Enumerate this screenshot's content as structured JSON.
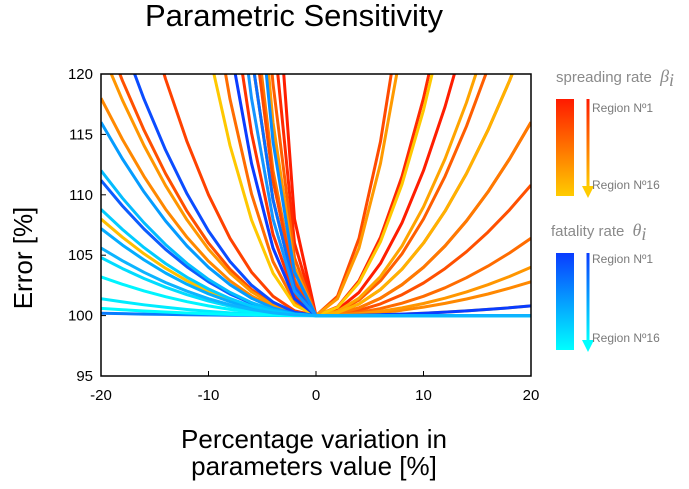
{
  "chart_data": {
    "type": "line",
    "title": "Parametric Sensitivity",
    "xlabel_line1": "Percentage variation in",
    "xlabel_line2": "parameters value [%]",
    "ylabel": "Error [%]",
    "xlim": [
      -20,
      20
    ],
    "ylim": [
      95,
      120
    ],
    "xticks": [
      -20,
      -10,
      0,
      10,
      20
    ],
    "yticks": [
      95,
      100,
      105,
      110,
      115,
      120
    ],
    "grid": false,
    "legend": {
      "placement": "right",
      "groups": [
        {
          "title": "spreading rate",
          "symbol": "β",
          "subscript": "i",
          "start_label": "Region Nº1",
          "end_label": "Region Nº16",
          "color_start": "#ff1a00",
          "color_end": "#ffcc00"
        },
        {
          "title": "fatality rate",
          "symbol": "θ",
          "subscript": "i",
          "start_label": "Region Nº1",
          "end_label": "Region Nº16",
          "color_start": "#0a3cff",
          "color_end": "#00ffff"
        }
      ]
    },
    "x": [
      -20,
      -18,
      -16,
      -14,
      -12,
      -10,
      -8,
      -6,
      -4,
      -2,
      0,
      2,
      4,
      6,
      8,
      10,
      12,
      14,
      16,
      18,
      20
    ],
    "series": [
      {
        "color": "#ff1e00",
        "left_rate": 2.0,
        "right_rate": 0.12
      },
      {
        "color": "#ff2a00",
        "left_rate": 1.5,
        "right_rate": 0.18
      },
      {
        "color": "#ff3500",
        "left_rate": 0.42,
        "right_rate": 0.04
      },
      {
        "color": "#ff4200",
        "left_rate": 0.1,
        "right_rate": 0.06
      },
      {
        "color": "#ff5000",
        "left_rate": 0.06,
        "right_rate": 0.027
      },
      {
        "color": "#ff5e00",
        "left_rate": 1.2,
        "right_rate": 0.08
      },
      {
        "color": "#ff6c00",
        "left_rate": 0.28,
        "right_rate": 0.016
      },
      {
        "color": "#ff7a00",
        "left_rate": 0.75,
        "right_rate": 0.04
      },
      {
        "color": "#ff8800",
        "left_rate": 0.045,
        "right_rate": 0.007
      },
      {
        "color": "#ff9600",
        "left_rate": 0.055,
        "right_rate": 0.01
      },
      {
        "color": "#ffa400",
        "left_rate": 0.6,
        "right_rate": 0.09
      },
      {
        "color": "#ffb200",
        "left_rate": 0.6,
        "right_rate": 0.06
      },
      {
        "color": "#ffbe00",
        "left_rate": 0.02,
        "right_rate": 0.002
      },
      {
        "color": "#ffc800",
        "left_rate": 0.22,
        "right_rate": 0.17
      },
      {
        "color": "#ff4b00",
        "left_rate": 0.7,
        "right_rate": 0.4
      },
      {
        "color": "#ff9a00",
        "left_rate": 1.0,
        "right_rate": 0.35
      },
      {
        "color": "#0a3cff",
        "left_rate": 0.35,
        "right_rate": 0.002
      },
      {
        "color": "#0b4cff",
        "left_rate": 0.07,
        "right_rate": 0.0
      },
      {
        "color": "#0c5cff",
        "left_rate": 0.028,
        "right_rate": 0.0
      },
      {
        "color": "#0a6cff",
        "left_rate": 0.6,
        "right_rate": 0.0
      },
      {
        "color": "#087cff",
        "left_rate": 0.0005,
        "right_rate": 0.0
      },
      {
        "color": "#068cff",
        "left_rate": 0.9,
        "right_rate": 0.0
      },
      {
        "color": "#059cff",
        "left_rate": 0.04,
        "right_rate": 0.0
      },
      {
        "color": "#04acff",
        "left_rate": 0.018,
        "right_rate": 0.0
      },
      {
        "color": "#03bcff",
        "left_rate": 0.03,
        "right_rate": 0.0
      },
      {
        "color": "#02ccff",
        "left_rate": 0.022,
        "right_rate": 0.0
      },
      {
        "color": "#01dcff",
        "left_rate": 0.012,
        "right_rate": 0.0
      },
      {
        "color": "#00ecff",
        "left_rate": 0.0035,
        "right_rate": 0.0
      },
      {
        "color": "#00f4ff",
        "left_rate": 0.008,
        "right_rate": 0.0
      },
      {
        "color": "#00fcff",
        "left_rate": 0.0015,
        "right_rate": 0.0
      },
      {
        "color": "#1494ff",
        "left_rate": 0.5,
        "right_rate": 0.0
      },
      {
        "color": "#0cb4ff",
        "left_rate": 0.014,
        "right_rate": 0.0
      }
    ]
  }
}
